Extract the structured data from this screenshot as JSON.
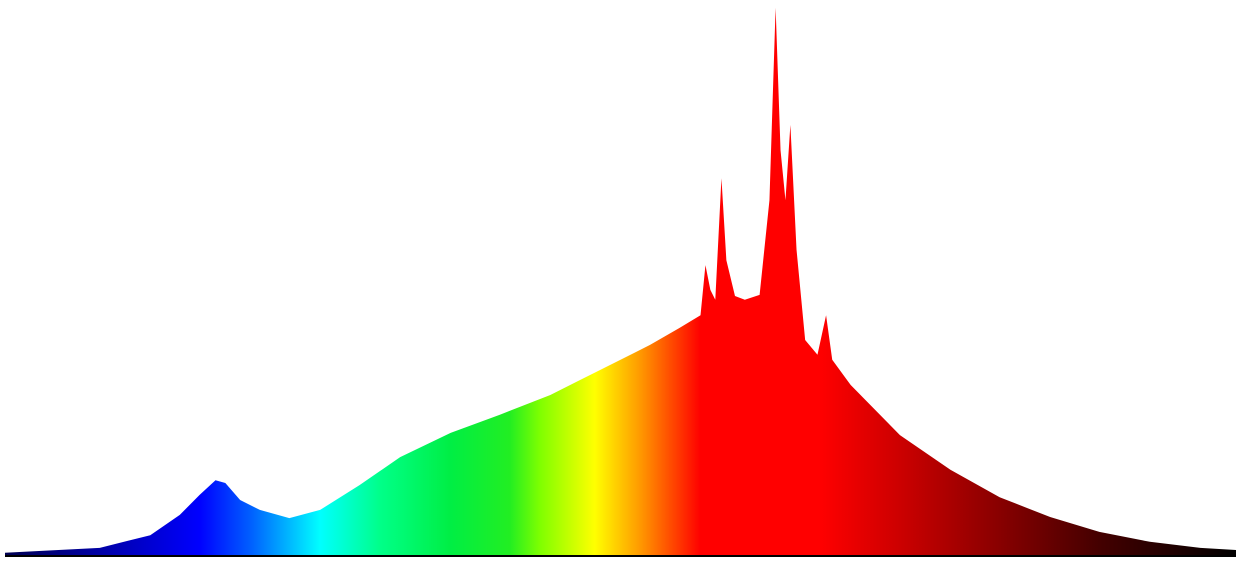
{
  "chart_data": {
    "type": "area",
    "xlim": [
      0,
      1000
    ],
    "ylim": [
      0,
      100
    ],
    "x": [
      0,
      77,
      118,
      142,
      158,
      171,
      179,
      191,
      207,
      231,
      256,
      288,
      321,
      362,
      402,
      443,
      483,
      524,
      548,
      565,
      569,
      573,
      577,
      582,
      586,
      593,
      601,
      613,
      621,
      626,
      630,
      634,
      638,
      643,
      650,
      660,
      667,
      672,
      687,
      727,
      768,
      808,
      849,
      889,
      930,
      971,
      1000
    ],
    "values": [
      0.4,
      1.3,
      3.6,
      7.3,
      10.9,
      13.6,
      13.1,
      10,
      8.2,
      6.7,
      8.2,
      12.7,
      17.8,
      22.2,
      25.5,
      29.1,
      33.6,
      38.2,
      41.3,
      43.6,
      52.7,
      48.2,
      46.4,
      68.5,
      53.6,
      47.1,
      46.4,
      47.3,
      64.5,
      99.5,
      73.6,
      64.5,
      78.2,
      55.5,
      39.1,
      36.4,
      43.6,
      35.5,
      30.9,
      21.8,
      15.5,
      10.5,
      6.9,
      4.2,
      2.4,
      1.3,
      0.9
    ],
    "gradient": [
      {
        "offset": 0,
        "color": "#000050"
      },
      {
        "offset": 0.158,
        "color": "#0000ff"
      },
      {
        "offset": 0.2,
        "color": "#0060ff"
      },
      {
        "offset": 0.256,
        "color": "#00ffff"
      },
      {
        "offset": 0.305,
        "color": "#00ff88"
      },
      {
        "offset": 0.362,
        "color": "#00ee44"
      },
      {
        "offset": 0.41,
        "color": "#22ee22"
      },
      {
        "offset": 0.435,
        "color": "#80ff00"
      },
      {
        "offset": 0.479,
        "color": "#ffff00"
      },
      {
        "offset": 0.516,
        "color": "#ff9900"
      },
      {
        "offset": 0.565,
        "color": "#ff0000"
      },
      {
        "offset": 0.662,
        "color": "#ff0000"
      },
      {
        "offset": 0.727,
        "color": "#cc0000"
      },
      {
        "offset": 0.808,
        "color": "#880000"
      },
      {
        "offset": 0.889,
        "color": "#440000"
      },
      {
        "offset": 1,
        "color": "#000000"
      }
    ]
  }
}
